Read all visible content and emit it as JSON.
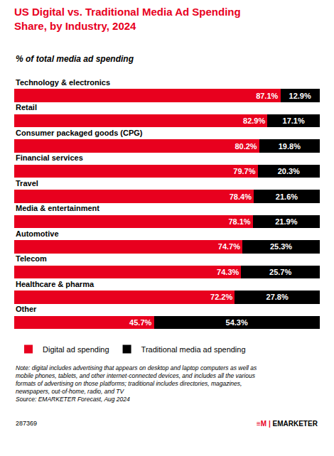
{
  "chart_data": {
    "type": "bar",
    "orientation": "horizontal",
    "stacked": true,
    "title": "US Digital vs. Traditional Media Ad Spending\nShare, by Industry, 2024",
    "subtitle": "% of total media ad spending",
    "categories": [
      "Technology & electronics",
      "Retail",
      "Consumer packaged goods (CPG)",
      "Financial services",
      "Travel",
      "Media & entertainment",
      "Automotive",
      "Telecom",
      "Healthcare & pharma",
      "Other"
    ],
    "series": [
      {
        "name": "Digital ad spending",
        "color": "#e8001e",
        "values": [
          87.1,
          82.9,
          80.2,
          79.7,
          78.4,
          78.1,
          74.7,
          74.3,
          72.2,
          45.7
        ],
        "value_labels": [
          "87.1%",
          "82.9%",
          "80.2%",
          "79.7%",
          "78.4%",
          "78.1%",
          "74.7%",
          "74.3%",
          "72.2%",
          "45.7%"
        ]
      },
      {
        "name": "Traditional media ad spending",
        "color": "#000000",
        "values": [
          12.9,
          17.1,
          19.8,
          20.3,
          21.6,
          21.9,
          25.3,
          25.7,
          27.8,
          54.3
        ],
        "value_labels": [
          "12.9%",
          "17.1%",
          "19.8%",
          "20.3%",
          "21.6%",
          "21.9%",
          "25.3%",
          "25.7%",
          "27.8%",
          "54.3%"
        ]
      }
    ],
    "xlim": [
      0,
      100
    ],
    "data_labels": true,
    "tick_labels": false,
    "grid": false,
    "legend": "bottom",
    "annotations": {
      "note": [
        "Note: digital includes advertising that appears on desktop and laptop computers as well as",
        "mobile phones, tablets, and other internet-connected devices, and includes all the various",
        "formats of advertising on those platforms; traditional includes directories, magazines,",
        "newspapers, out-of-home, radio, and TV",
        "Source: EMARKETER Forecast, Aug 2024"
      ],
      "footer": [
        "287369",
        "≡M |",
        "EMARKETER"
      ]
    }
  }
}
